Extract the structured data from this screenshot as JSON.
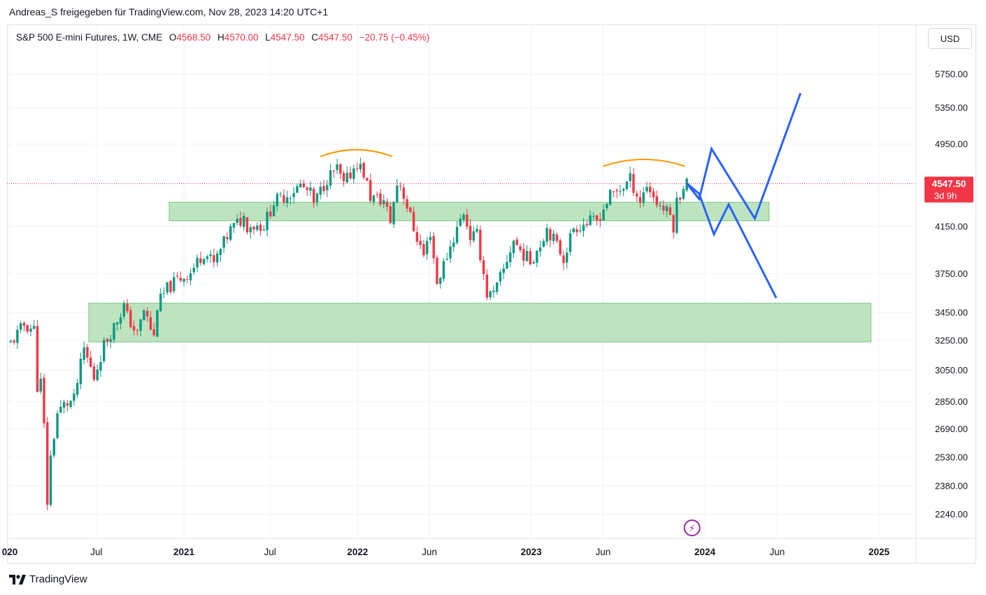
{
  "caption": "Andreas_S freigegeben für TradingView.com, Nov 28, 2023 14:20 UTC+1",
  "legend": {
    "symbol": "S&P 500 E-mini Futures, 1W, CME",
    "open_label": "O",
    "open": "4568.50",
    "high_label": "H",
    "high": "4570.00",
    "low_label": "L",
    "low": "4547.50",
    "close_label": "C",
    "close": "4547.50",
    "change": "−20.75 (−0.45%)"
  },
  "currency_button": "USD",
  "footer_brand": "TradingView",
  "colors": {
    "up": "#089981",
    "down": "#f23645",
    "zone_fill": "#b2dfb4",
    "zone_border": "#7cc482",
    "arc": "#ff9800",
    "projection": "#2962ff",
    "last_price_bg": "#f23645",
    "marker": "#9c27b0"
  },
  "chart_data": {
    "type": "candlestick",
    "interval": "1W",
    "scale": "log",
    "y_ticks": [
      "5750.00",
      "5350.00",
      "4950.00",
      "4150.00",
      "3750.00",
      "3450.00",
      "3250.00",
      "3050.00",
      "2850.00",
      "2690.00",
      "2530.00",
      "2380.00",
      "2240.00"
    ],
    "x_ticks": [
      {
        "label": "020",
        "bold": true,
        "date": "2020-01-01"
      },
      {
        "label": "Jul",
        "bold": false,
        "date": "2020-07-01"
      },
      {
        "label": "2021",
        "bold": true,
        "date": "2021-01-01"
      },
      {
        "label": "Jul",
        "bold": false,
        "date": "2021-07-01"
      },
      {
        "label": "2022",
        "bold": true,
        "date": "2022-01-01"
      },
      {
        "label": "Jun",
        "bold": false,
        "date": "2022-06-01"
      },
      {
        "label": "2023",
        "bold": true,
        "date": "2023-01-01"
      },
      {
        "label": "Jun",
        "bold": false,
        "date": "2023-06-01"
      },
      {
        "label": "2024",
        "bold": true,
        "date": "2024-01-01"
      },
      {
        "label": "Jun",
        "bold": false,
        "date": "2024-06-01"
      },
      {
        "label": "2025",
        "bold": true,
        "date": "2025-01-01"
      }
    ],
    "last_price": {
      "value": 4547.5,
      "label": "4547.50",
      "countdown": "3d 9h"
    },
    "close_path": [
      [
        "2020-01-03",
        3230
      ],
      [
        "2020-01-31",
        3360
      ],
      [
        "2020-02-21",
        3330
      ],
      [
        "2020-02-28",
        2950
      ],
      [
        "2020-03-06",
        2970
      ],
      [
        "2020-03-13",
        2700
      ],
      [
        "2020-03-20",
        2300
      ],
      [
        "2020-03-27",
        2530
      ],
      [
        "2020-04-10",
        2780
      ],
      [
        "2020-04-24",
        2830
      ],
      [
        "2020-05-15",
        2860
      ],
      [
        "2020-06-05",
        3190
      ],
      [
        "2020-06-26",
        3000
      ],
      [
        "2020-07-17",
        3220
      ],
      [
        "2020-08-07",
        3350
      ],
      [
        "2020-08-28",
        3500
      ],
      [
        "2020-09-04",
        3420
      ],
      [
        "2020-09-25",
        3290
      ],
      [
        "2020-10-09",
        3470
      ],
      [
        "2020-10-30",
        3270
      ],
      [
        "2020-11-06",
        3500
      ],
      [
        "2020-11-27",
        3630
      ],
      [
        "2020-12-18",
        3700
      ],
      [
        "2021-01-15",
        3760
      ],
      [
        "2021-02-12",
        3930
      ],
      [
        "2021-03-05",
        3830
      ],
      [
        "2021-04-09",
        4120
      ],
      [
        "2021-05-07",
        4230
      ],
      [
        "2021-05-14",
        4160
      ],
      [
        "2021-06-18",
        4160
      ],
      [
        "2021-07-09",
        4370
      ],
      [
        "2021-08-13",
        4460
      ],
      [
        "2021-09-03",
        4530
      ],
      [
        "2021-09-24",
        4450
      ],
      [
        "2021-10-01",
        4350
      ],
      [
        "2021-10-29",
        4600
      ],
      [
        "2021-11-19",
        4690
      ],
      [
        "2021-12-03",
        4530
      ],
      [
        "2021-12-31",
        4760
      ],
      [
        "2022-01-14",
        4650
      ],
      [
        "2022-01-28",
        4420
      ],
      [
        "2022-02-25",
        4380
      ],
      [
        "2022-03-11",
        4200
      ],
      [
        "2022-03-25",
        4540
      ],
      [
        "2022-04-01",
        4540
      ],
      [
        "2022-04-29",
        4130
      ],
      [
        "2022-05-20",
        3900
      ],
      [
        "2022-06-03",
        4100
      ],
      [
        "2022-06-17",
        3670
      ],
      [
        "2022-07-08",
        3900
      ],
      [
        "2022-08-12",
        4280
      ],
      [
        "2022-08-26",
        4060
      ],
      [
        "2022-09-09",
        4070
      ],
      [
        "2022-09-30",
        3590
      ],
      [
        "2022-10-14",
        3580
      ],
      [
        "2022-11-04",
        3780
      ],
      [
        "2022-11-25",
        4030
      ],
      [
        "2022-12-09",
        3940
      ],
      [
        "2022-12-30",
        3850
      ],
      [
        "2023-01-20",
        4000
      ],
      [
        "2023-02-03",
        4140
      ],
      [
        "2023-03-10",
        3880
      ],
      [
        "2023-03-31",
        4140
      ],
      [
        "2023-04-28",
        4180
      ],
      [
        "2023-05-19",
        4200
      ],
      [
        "2023-06-16",
        4430
      ],
      [
        "2023-07-14",
        4520
      ],
      [
        "2023-07-28",
        4590
      ],
      [
        "2023-08-18",
        4380
      ],
      [
        "2023-09-01",
        4540
      ],
      [
        "2023-09-22",
        4370
      ],
      [
        "2023-10-20",
        4250
      ],
      [
        "2023-10-27",
        4150
      ],
      [
        "2023-11-03",
        4370
      ],
      [
        "2023-11-17",
        4540
      ],
      [
        "2023-11-24",
        4570
      ]
    ]
  },
  "zones": [
    {
      "x0": "2020-12-01",
      "x1": "2024-05-15",
      "y_top": 4370,
      "y_bottom": 4200
    },
    {
      "x0": "2020-06-15",
      "x1": "2024-12-15",
      "y_top": 3520,
      "y_bottom": 3240
    }
  ],
  "arcs": [
    {
      "x0": "2021-10-15",
      "x1": "2022-03-15",
      "y_ends": 4820,
      "y_peak": 4890
    },
    {
      "x0": "2023-06-01",
      "x1": "2023-11-20",
      "y_ends": 4720,
      "y_peak": 4790
    }
  ],
  "projections": [
    [
      [
        "2023-11-24",
        4550
      ],
      [
        "2023-12-20",
        4400
      ],
      [
        "2024-01-15",
        4900
      ],
      [
        "2024-04-15",
        4220
      ],
      [
        "2024-07-20",
        5520
      ]
    ],
    [
      [
        "2023-11-24",
        4550
      ],
      [
        "2023-12-20",
        4450
      ],
      [
        "2024-01-20",
        4080
      ],
      [
        "2024-02-20",
        4350
      ],
      [
        "2024-05-30",
        3560
      ]
    ]
  ],
  "marker": {
    "date": "2023-12-05",
    "symbol": "⚡"
  }
}
